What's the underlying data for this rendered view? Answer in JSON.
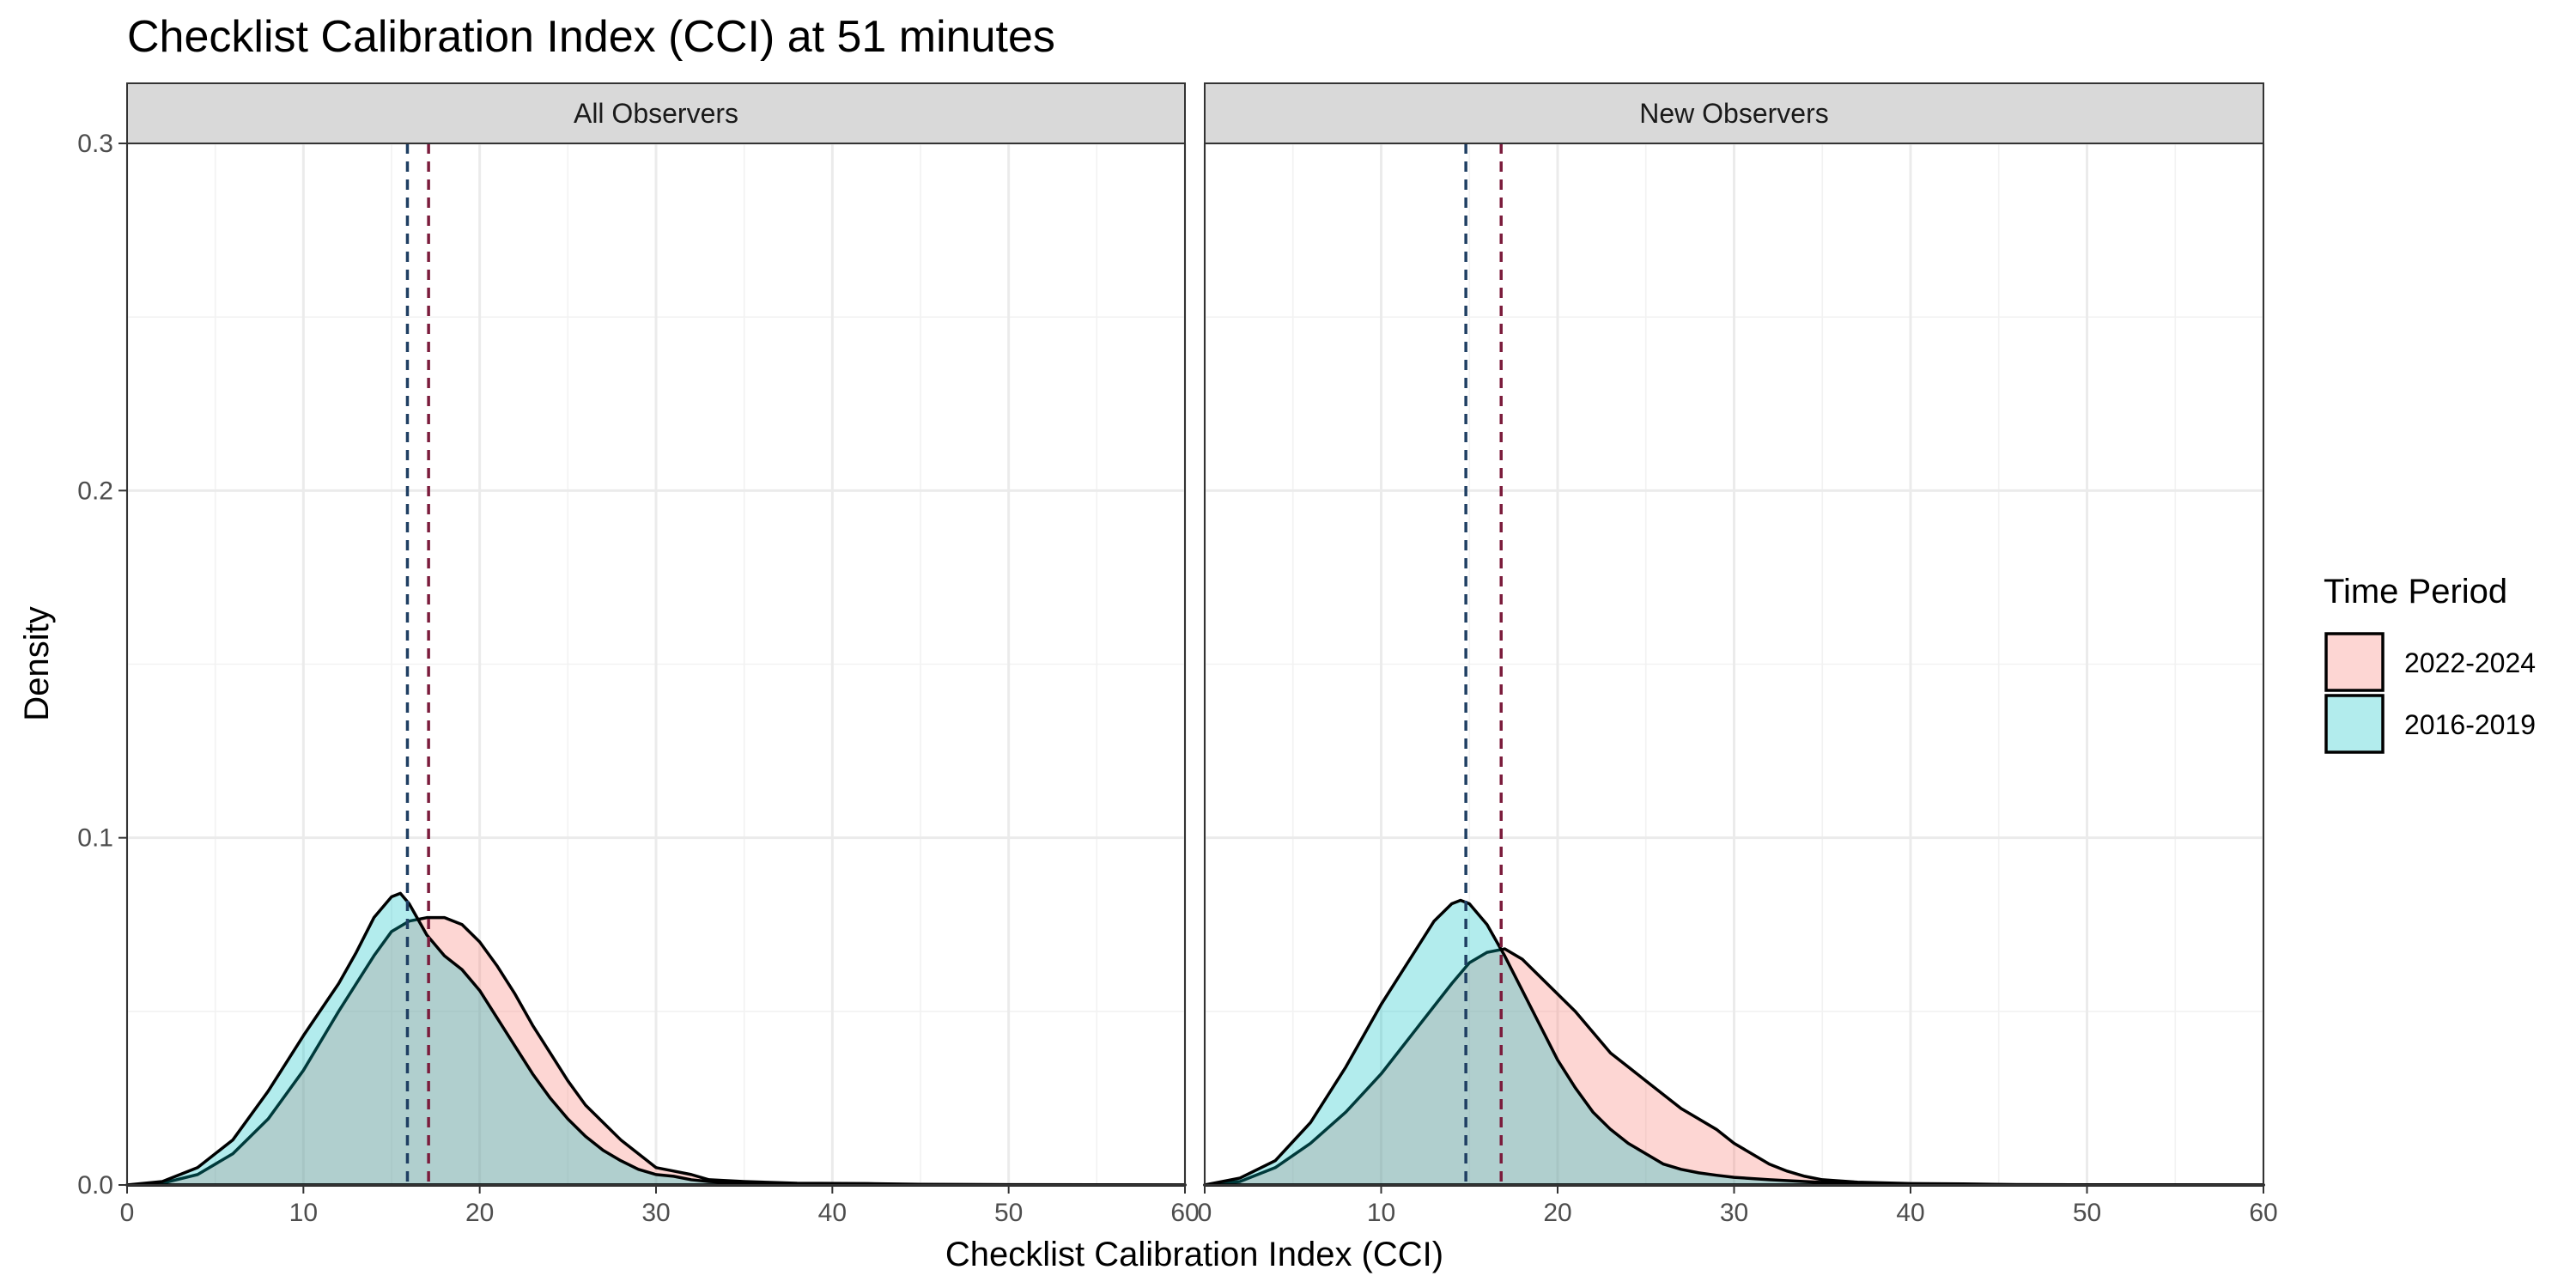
{
  "chart_data": {
    "type": "area",
    "title": "Checklist Calibration Index (CCI) at 51 minutes",
    "xlabel": "Checklist Calibration Index (CCI)",
    "ylabel": "Density",
    "xlim": [
      0,
      60
    ],
    "ylim": [
      0,
      0.3
    ],
    "x_ticks": [
      0,
      10,
      20,
      30,
      40,
      50,
      60
    ],
    "x_tick_labels": [
      "0",
      "10",
      "20",
      "30",
      "40",
      "50",
      "60"
    ],
    "y_ticks": [
      0,
      0.1,
      0.2,
      0.3
    ],
    "y_tick_labels": [
      "0.0",
      "0.1",
      "0.2",
      "0.3"
    ],
    "grid": true,
    "legend": {
      "title": "Time Period",
      "position": "right",
      "entries": [
        {
          "label": "2022-2024",
          "fill": "#f8766d"
        },
        {
          "label": "2016-2019",
          "fill": "#00bfc4"
        }
      ]
    },
    "facets": [
      {
        "label": "All Observers",
        "series": [
          {
            "name": "2022-2024",
            "mean": 17.1,
            "points": [
              [
                0,
                0
              ],
              [
                2,
                0.0005
              ],
              [
                4,
                0.003
              ],
              [
                6,
                0.009
              ],
              [
                8,
                0.019
              ],
              [
                10,
                0.033
              ],
              [
                12,
                0.05
              ],
              [
                14,
                0.066
              ],
              [
                15,
                0.073
              ],
              [
                16,
                0.076
              ],
              [
                17,
                0.077
              ],
              [
                18,
                0.077
              ],
              [
                19,
                0.075
              ],
              [
                20,
                0.07
              ],
              [
                21,
                0.063
              ],
              [
                22,
                0.055
              ],
              [
                23,
                0.046
              ],
              [
                24,
                0.038
              ],
              [
                25,
                0.03
              ],
              [
                26,
                0.023
              ],
              [
                27,
                0.018
              ],
              [
                28,
                0.013
              ],
              [
                29,
                0.009
              ],
              [
                30,
                0.005
              ],
              [
                31,
                0.004
              ],
              [
                32,
                0.003
              ],
              [
                33,
                0.0015
              ],
              [
                35,
                0.001
              ],
              [
                38,
                0.0005
              ],
              [
                42,
                0.0004
              ],
              [
                45,
                0.0002
              ],
              [
                50,
                0.0001
              ],
              [
                60,
                0
              ]
            ]
          },
          {
            "name": "2016-2019",
            "mean": 15.9,
            "points": [
              [
                0,
                0
              ],
              [
                2,
                0.001
              ],
              [
                4,
                0.005
              ],
              [
                6,
                0.013
              ],
              [
                8,
                0.027
              ],
              [
                10,
                0.043
              ],
              [
                12,
                0.058
              ],
              [
                13,
                0.067
              ],
              [
                14,
                0.077
              ],
              [
                15,
                0.083
              ],
              [
                15.5,
                0.084
              ],
              [
                16,
                0.081
              ],
              [
                17,
                0.072
              ],
              [
                18,
                0.066
              ],
              [
                19,
                0.062
              ],
              [
                20,
                0.056
              ],
              [
                21,
                0.048
              ],
              [
                22,
                0.04
              ],
              [
                23,
                0.032
              ],
              [
                24,
                0.025
              ],
              [
                25,
                0.019
              ],
              [
                26,
                0.014
              ],
              [
                27,
                0.01
              ],
              [
                28,
                0.007
              ],
              [
                29,
                0.0045
              ],
              [
                30,
                0.003
              ],
              [
                31,
                0.0025
              ],
              [
                32,
                0.0015
              ],
              [
                33,
                0.001
              ],
              [
                35,
                0.0005
              ],
              [
                40,
                0.0002
              ],
              [
                45,
                0.0001
              ],
              [
                60,
                0
              ]
            ]
          }
        ]
      },
      {
        "label": "New Observers",
        "series": [
          {
            "name": "2022-2024",
            "mean": 16.8,
            "points": [
              [
                0,
                0
              ],
              [
                2,
                0.001
              ],
              [
                4,
                0.005
              ],
              [
                6,
                0.012
              ],
              [
                8,
                0.021
              ],
              [
                10,
                0.032
              ],
              [
                12,
                0.045
              ],
              [
                14,
                0.058
              ],
              [
                15,
                0.064
              ],
              [
                16,
                0.067
              ],
              [
                17,
                0.068
              ],
              [
                18,
                0.065
              ],
              [
                19,
                0.06
              ],
              [
                20,
                0.055
              ],
              [
                21,
                0.05
              ],
              [
                22,
                0.044
              ],
              [
                23,
                0.038
              ],
              [
                24,
                0.034
              ],
              [
                25,
                0.03
              ],
              [
                26,
                0.026
              ],
              [
                27,
                0.022
              ],
              [
                28,
                0.019
              ],
              [
                29,
                0.016
              ],
              [
                30,
                0.012
              ],
              [
                31,
                0.009
              ],
              [
                32,
                0.006
              ],
              [
                33,
                0.004
              ],
              [
                34,
                0.0025
              ],
              [
                35,
                0.0015
              ],
              [
                37,
                0.0008
              ],
              [
                40,
                0.0004
              ],
              [
                43,
                0.0003
              ],
              [
                46,
                0.0001
              ],
              [
                50,
                5e-05
              ],
              [
                60,
                0
              ]
            ]
          },
          {
            "name": "2016-2019",
            "mean": 14.8,
            "points": [
              [
                0,
                0
              ],
              [
                2,
                0.002
              ],
              [
                4,
                0.007
              ],
              [
                6,
                0.018
              ],
              [
                8,
                0.034
              ],
              [
                10,
                0.052
              ],
              [
                12,
                0.068
              ],
              [
                13,
                0.076
              ],
              [
                14,
                0.081
              ],
              [
                14.5,
                0.082
              ],
              [
                15,
                0.081
              ],
              [
                16,
                0.075
              ],
              [
                17,
                0.066
              ],
              [
                18,
                0.056
              ],
              [
                19,
                0.046
              ],
              [
                20,
                0.036
              ],
              [
                21,
                0.028
              ],
              [
                22,
                0.021
              ],
              [
                23,
                0.016
              ],
              [
                24,
                0.012
              ],
              [
                25,
                0.009
              ],
              [
                26,
                0.006
              ],
              [
                27,
                0.0045
              ],
              [
                28,
                0.0035
              ],
              [
                29,
                0.0028
              ],
              [
                30,
                0.0022
              ],
              [
                32,
                0.0015
              ],
              [
                34,
                0.001
              ],
              [
                36,
                0.0005
              ],
              [
                40,
                0.0002
              ],
              [
                45,
                0.0001
              ],
              [
                60,
                0
              ]
            ]
          }
        ]
      }
    ],
    "colors": {
      "fill_2022_2024": "#f8766d",
      "fill_2016_2019": "#00bfc4",
      "mean_2022_2024": "#7b1c3c",
      "mean_2016_2019": "#1f3f63"
    }
  }
}
